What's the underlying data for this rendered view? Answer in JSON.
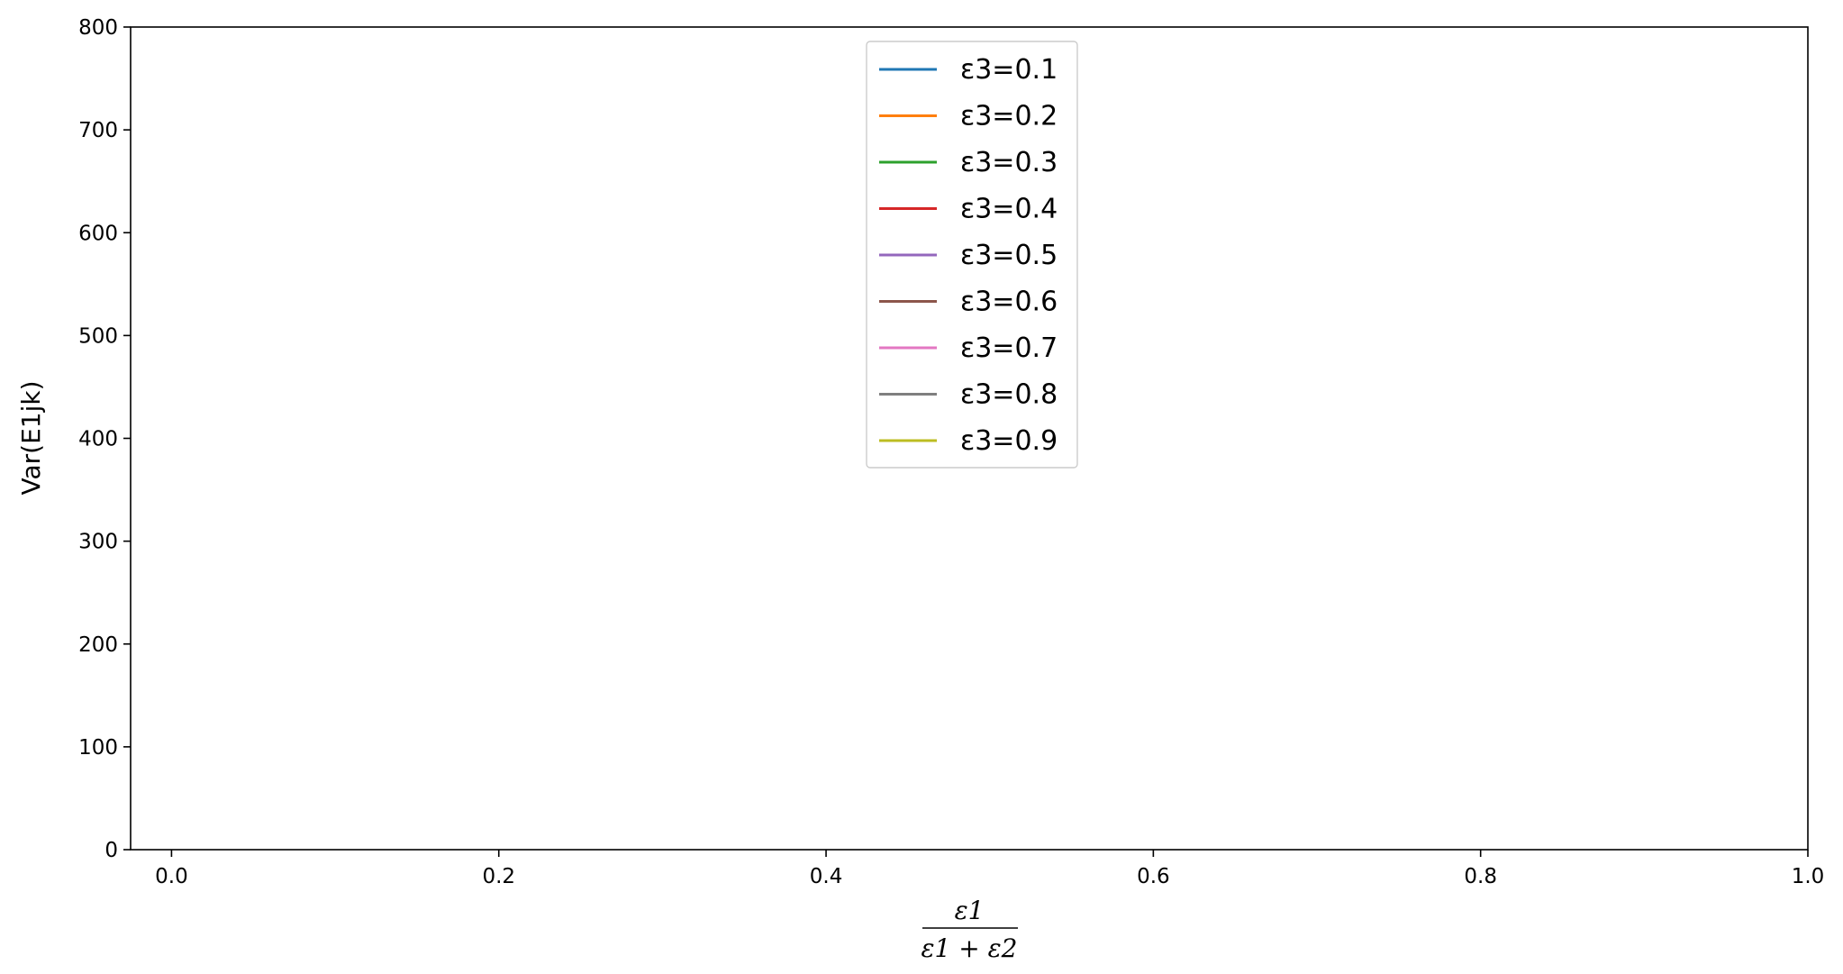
{
  "chart_data": {
    "type": "line",
    "title": "",
    "xlabel": {
      "numerator": "ε1",
      "denominator": "ε1 + ε2"
    },
    "ylabel": "Var(E1jk)",
    "xlim": [
      -0.025,
      1.0
    ],
    "ylim": [
      0,
      800
    ],
    "xticks": [
      0.0,
      0.2,
      0.4,
      0.6,
      0.8,
      1.0
    ],
    "xtick_labels": [
      "0.0",
      "0.2",
      "0.4",
      "0.6",
      "0.8",
      "1.0"
    ],
    "yticks": [
      0,
      100,
      200,
      300,
      400,
      500,
      600,
      700,
      800
    ],
    "ytick_labels": [
      "0",
      "100",
      "200",
      "300",
      "400",
      "500",
      "600",
      "700",
      "800"
    ],
    "grid": false,
    "legend_position": "top-center",
    "series": [
      {
        "name": "ε3=0.1",
        "epsilon3": 0.1,
        "color": "#1f77b4"
      },
      {
        "name": "ε3=0.2",
        "epsilon3": 0.2,
        "color": "#ff7f0e"
      },
      {
        "name": "ε3=0.3",
        "epsilon3": 0.3,
        "color": "#2ca02c"
      },
      {
        "name": "ε3=0.4",
        "epsilon3": 0.4,
        "color": "#d62728"
      },
      {
        "name": "ε3=0.5",
        "epsilon3": 0.5,
        "color": "#9467bd"
      },
      {
        "name": "ε3=0.6",
        "epsilon3": 0.6,
        "color": "#8c564b"
      },
      {
        "name": "ε3=0.7",
        "epsilon3": 0.7,
        "color": "#e377c2"
      },
      {
        "name": "ε3=0.8",
        "epsilon3": 0.8,
        "color": "#7f7f7f"
      },
      {
        "name": "ε3=0.9",
        "epsilon3": 0.9,
        "color": "#bcbd22"
      }
    ]
  }
}
